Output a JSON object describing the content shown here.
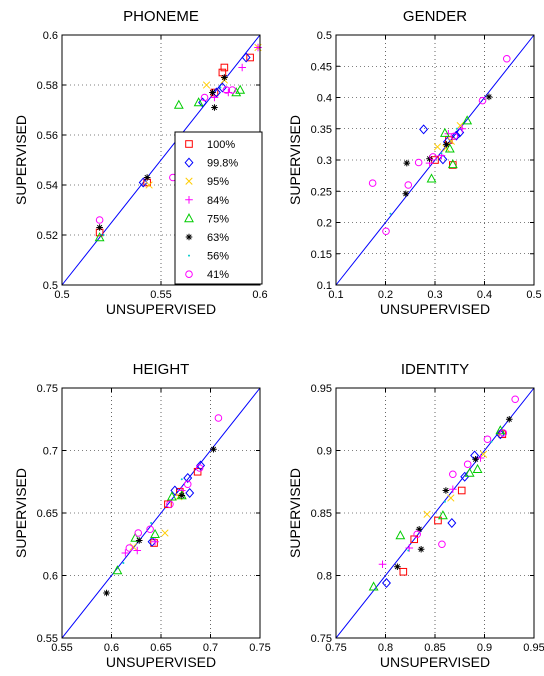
{
  "chart_data": [
    {
      "type": "scatter",
      "title": "PHONEME",
      "xlabel": "UNSUPERVISED",
      "ylabel": "SUPERVISED",
      "xlim": [
        0.5,
        0.6
      ],
      "ylim": [
        0.5,
        0.6
      ],
      "xticks": [
        "0.5",
        "0.55",
        "0.6"
      ],
      "yticks": [
        "0.5",
        "0.52",
        "0.54",
        "0.56",
        "0.58",
        "0.6"
      ],
      "xtick_values": [
        0.5,
        0.55,
        0.6
      ],
      "ytick_values": [
        0.5,
        0.52,
        0.54,
        0.56,
        0.58,
        0.6
      ],
      "grid": true,
      "diagonal": true,
      "legend": {
        "placement": "lower-right",
        "entries": [
          "100%",
          "99.8%",
          "95%",
          "84%",
          "75%",
          "63%",
          "56%",
          "41%"
        ]
      },
      "series": [
        {
          "name": "100%",
          "marker": "square",
          "color": "#ff0000",
          "points": [
            [
              0.519,
              0.521
            ],
            [
              0.543,
              0.541
            ],
            [
              0.577,
              0.577
            ],
            [
              0.581,
              0.585
            ],
            [
              0.582,
              0.587
            ],
            [
              0.595,
              0.591
            ]
          ]
        },
        {
          "name": "99.8%",
          "marker": "diamond",
          "color": "#0000ff",
          "points": [
            [
              0.541,
              0.541
            ],
            [
              0.571,
              0.573
            ],
            [
              0.578,
              0.577
            ],
            [
              0.581,
              0.579
            ],
            [
              0.593,
              0.591
            ]
          ]
        },
        {
          "name": "95%",
          "marker": "x",
          "color": "#ffcc00",
          "points": [
            [
              0.544,
              0.54
            ],
            [
              0.573,
              0.58
            ],
            [
              0.582,
              0.582
            ],
            [
              0.599,
              0.595
            ]
          ]
        },
        {
          "name": "84%",
          "marker": "plus",
          "color": "#ff00ff",
          "points": [
            [
              0.577,
              0.575
            ],
            [
              0.584,
              0.577
            ],
            [
              0.591,
              0.587
            ],
            [
              0.599,
              0.595
            ]
          ]
        },
        {
          "name": "75%",
          "marker": "triangle",
          "color": "#00cc00",
          "points": [
            [
              0.519,
              0.519
            ],
            [
              0.559,
              0.572
            ],
            [
              0.569,
              0.573
            ],
            [
              0.588,
              0.577
            ],
            [
              0.59,
              0.578
            ]
          ]
        },
        {
          "name": "63%",
          "marker": "star",
          "color": "#000000",
          "points": [
            [
              0.519,
              0.523
            ],
            [
              0.543,
              0.543
            ],
            [
              0.576,
              0.577
            ],
            [
              0.577,
              0.571
            ],
            [
              0.582,
              0.583
            ]
          ]
        },
        {
          "name": "56%",
          "marker": "dot",
          "color": "#00cccc",
          "points": [
            [
              0.521,
              0.52
            ],
            [
              0.56,
              0.559
            ],
            [
              0.58,
              0.579
            ]
          ]
        },
        {
          "name": "41%",
          "marker": "circle",
          "color": "#ff00ff",
          "points": [
            [
              0.519,
              0.526
            ],
            [
              0.556,
              0.543
            ],
            [
              0.572,
              0.575
            ],
            [
              0.583,
              0.578
            ],
            [
              0.586,
              0.578
            ]
          ]
        }
      ]
    },
    {
      "type": "scatter",
      "title": "GENDER",
      "xlabel": "UNSUPERVISED",
      "ylabel": "SUPERVISED",
      "xlim": [
        0.1,
        0.5
      ],
      "ylim": [
        0.1,
        0.5
      ],
      "xticks": [
        "0.1",
        "0.2",
        "0.3",
        "0.4",
        "0.5"
      ],
      "yticks": [
        "0.1",
        "0.15",
        "0.2",
        "0.25",
        "0.3",
        "0.35",
        "0.4",
        "0.45",
        "0.5"
      ],
      "xtick_values": [
        0.1,
        0.2,
        0.3,
        0.4,
        0.5
      ],
      "ytick_values": [
        0.1,
        0.15,
        0.2,
        0.25,
        0.3,
        0.35,
        0.4,
        0.45,
        0.5
      ],
      "grid": true,
      "diagonal": true,
      "series": [
        {
          "name": "100%",
          "marker": "square",
          "color": "#ff0000",
          "points": [
            [
              0.3,
              0.3
            ],
            [
              0.328,
              0.332
            ],
            [
              0.336,
              0.292
            ]
          ]
        },
        {
          "name": "99.8%",
          "marker": "diamond",
          "color": "#0000ff",
          "points": [
            [
              0.277,
              0.349
            ],
            [
              0.316,
              0.301
            ],
            [
              0.325,
              0.329
            ],
            [
              0.343,
              0.339
            ],
            [
              0.35,
              0.344
            ]
          ]
        },
        {
          "name": "95%",
          "marker": "x",
          "color": "#ffcc00",
          "points": [
            [
              0.305,
              0.321
            ],
            [
              0.322,
              0.319
            ],
            [
              0.333,
              0.33
            ],
            [
              0.351,
              0.355
            ]
          ]
        },
        {
          "name": "84%",
          "marker": "plus",
          "color": "#ff00ff",
          "points": [
            [
              0.289,
              0.295
            ],
            [
              0.313,
              0.307
            ],
            [
              0.327,
              0.342
            ],
            [
              0.355,
              0.35
            ]
          ]
        },
        {
          "name": "75%",
          "marker": "triangle",
          "color": "#00cc00",
          "points": [
            [
              0.293,
              0.27
            ],
            [
              0.32,
              0.343
            ],
            [
              0.33,
              0.318
            ],
            [
              0.336,
              0.293
            ],
            [
              0.365,
              0.363
            ]
          ]
        },
        {
          "name": "63%",
          "marker": "star",
          "color": "#000000",
          "points": [
            [
              0.241,
              0.246
            ],
            [
              0.243,
              0.295
            ],
            [
              0.289,
              0.302
            ],
            [
              0.323,
              0.325
            ],
            [
              0.409,
              0.401
            ]
          ]
        },
        {
          "name": "56%",
          "marker": "dot",
          "color": "#00cccc",
          "points": [
            [
              0.21,
              0.214
            ],
            [
              0.313,
              0.311
            ],
            [
              0.344,
              0.35
            ]
          ]
        },
        {
          "name": "41%",
          "marker": "circle",
          "color": "#ff00ff",
          "points": [
            [
              0.174,
              0.263
            ],
            [
              0.201,
              0.186
            ],
            [
              0.246,
              0.26
            ],
            [
              0.267,
              0.296
            ],
            [
              0.296,
              0.305
            ],
            [
              0.339,
              0.338
            ],
            [
              0.396,
              0.395
            ],
            [
              0.445,
              0.462
            ]
          ]
        }
      ]
    },
    {
      "type": "scatter",
      "title": "HEIGHT",
      "xlabel": "UNSUPERVISED",
      "ylabel": "SUPERVISED",
      "xlim": [
        0.55,
        0.75
      ],
      "ylim": [
        0.55,
        0.75
      ],
      "xticks": [
        "0.55",
        "0.6",
        "0.65",
        "0.7",
        "0.75"
      ],
      "yticks": [
        "0.55",
        "0.6",
        "0.65",
        "0.7",
        "0.75"
      ],
      "xtick_values": [
        0.55,
        0.6,
        0.65,
        0.7,
        0.75
      ],
      "ytick_values": [
        0.55,
        0.6,
        0.65,
        0.7,
        0.75
      ],
      "grid": true,
      "diagonal": true,
      "series": [
        {
          "name": "100%",
          "marker": "square",
          "color": "#ff0000",
          "points": [
            [
              0.643,
              0.626
            ],
            [
              0.657,
              0.657
            ],
            [
              0.669,
              0.667
            ],
            [
              0.687,
              0.683
            ]
          ]
        },
        {
          "name": "99.8%",
          "marker": "diamond",
          "color": "#0000ff",
          "points": [
            [
              0.641,
              0.627
            ],
            [
              0.664,
              0.668
            ],
            [
              0.677,
              0.678
            ],
            [
              0.679,
              0.666
            ],
            [
              0.69,
              0.688
            ]
          ]
        },
        {
          "name": "95%",
          "marker": "x",
          "color": "#ffcc00",
          "points": [
            [
              0.622,
              0.623
            ],
            [
              0.654,
              0.634
            ],
            [
              0.668,
              0.663
            ]
          ]
        },
        {
          "name": "84%",
          "marker": "plus",
          "color": "#ff00ff",
          "points": [
            [
              0.614,
              0.618
            ],
            [
              0.626,
              0.62
            ],
            [
              0.644,
              0.627
            ],
            [
              0.671,
              0.668
            ]
          ]
        },
        {
          "name": "75%",
          "marker": "triangle",
          "color": "#00cc00",
          "points": [
            [
              0.606,
              0.604
            ],
            [
              0.624,
              0.63
            ],
            [
              0.644,
              0.633
            ],
            [
              0.661,
              0.663
            ],
            [
              0.671,
              0.664
            ]
          ]
        },
        {
          "name": "63%",
          "marker": "star",
          "color": "#000000",
          "points": [
            [
              0.595,
              0.586
            ],
            [
              0.628,
              0.628
            ],
            [
              0.671,
              0.664
            ],
            [
              0.703,
              0.701
            ]
          ]
        },
        {
          "name": "56%",
          "marker": "dot",
          "color": "#00cccc",
          "points": [
            [
              0.612,
              0.61
            ],
            [
              0.64,
              0.642
            ],
            [
              0.671,
              0.677
            ]
          ]
        },
        {
          "name": "41%",
          "marker": "circle",
          "color": "#ff00ff",
          "points": [
            [
              0.618,
              0.622
            ],
            [
              0.627,
              0.634
            ],
            [
              0.639,
              0.637
            ],
            [
              0.659,
              0.657
            ],
            [
              0.677,
              0.673
            ],
            [
              0.689,
              0.686
            ],
            [
              0.708,
              0.726
            ]
          ]
        }
      ]
    },
    {
      "type": "scatter",
      "title": "IDENTITY",
      "xlabel": "UNSUPERVISED",
      "ylabel": "SUPERVISED",
      "xlim": [
        0.75,
        0.95
      ],
      "ylim": [
        0.75,
        0.95
      ],
      "xticks": [
        "0.75",
        "0.8",
        "0.85",
        "0.9",
        "0.95"
      ],
      "yticks": [
        "0.75",
        "0.8",
        "0.85",
        "0.9",
        "0.95"
      ],
      "xtick_values": [
        0.75,
        0.8,
        0.85,
        0.9,
        0.95
      ],
      "ytick_values": [
        0.75,
        0.8,
        0.85,
        0.9,
        0.95
      ],
      "grid": true,
      "diagonal": true,
      "series": [
        {
          "name": "100%",
          "marker": "square",
          "color": "#ff0000",
          "points": [
            [
              0.818,
              0.803
            ],
            [
              0.829,
              0.829
            ],
            [
              0.853,
              0.844
            ],
            [
              0.877,
              0.868
            ],
            [
              0.918,
              0.913
            ]
          ]
        },
        {
          "name": "99.8%",
          "marker": "diamond",
          "color": "#0000ff",
          "points": [
            [
              0.801,
              0.794
            ],
            [
              0.867,
              0.842
            ],
            [
              0.88,
              0.879
            ],
            [
              0.89,
              0.896
            ],
            [
              0.916,
              0.913
            ]
          ]
        },
        {
          "name": "95%",
          "marker": "x",
          "color": "#ffcc00",
          "points": [
            [
              0.842,
              0.849
            ],
            [
              0.866,
              0.862
            ],
            [
              0.899,
              0.897
            ]
          ]
        },
        {
          "name": "84%",
          "marker": "plus",
          "color": "#ff00ff",
          "points": [
            [
              0.797,
              0.809
            ],
            [
              0.824,
              0.822
            ],
            [
              0.868,
              0.869
            ],
            [
              0.896,
              0.894
            ]
          ]
        },
        {
          "name": "75%",
          "marker": "triangle",
          "color": "#00cc00",
          "points": [
            [
              0.788,
              0.791
            ],
            [
              0.815,
              0.832
            ],
            [
              0.858,
              0.848
            ],
            [
              0.885,
              0.882
            ],
            [
              0.893,
              0.885
            ],
            [
              0.916,
              0.916
            ]
          ]
        },
        {
          "name": "63%",
          "marker": "star",
          "color": "#000000",
          "points": [
            [
              0.812,
              0.807
            ],
            [
              0.834,
              0.837
            ],
            [
              0.836,
              0.821
            ],
            [
              0.861,
              0.868
            ],
            [
              0.891,
              0.893
            ],
            [
              0.925,
              0.925
            ]
          ]
        },
        {
          "name": "56%",
          "marker": "dot",
          "color": "#00cccc",
          "points": [
            [
              0.823,
              0.82
            ],
            [
              0.86,
              0.859
            ],
            [
              0.907,
              0.907
            ]
          ]
        },
        {
          "name": "41%",
          "marker": "circle",
          "color": "#ff00ff",
          "points": [
            [
              0.832,
              0.833
            ],
            [
              0.857,
              0.825
            ],
            [
              0.868,
              0.881
            ],
            [
              0.883,
              0.889
            ],
            [
              0.903,
              0.909
            ],
            [
              0.919,
              0.914
            ],
            [
              0.931,
              0.941
            ]
          ]
        }
      ]
    }
  ]
}
